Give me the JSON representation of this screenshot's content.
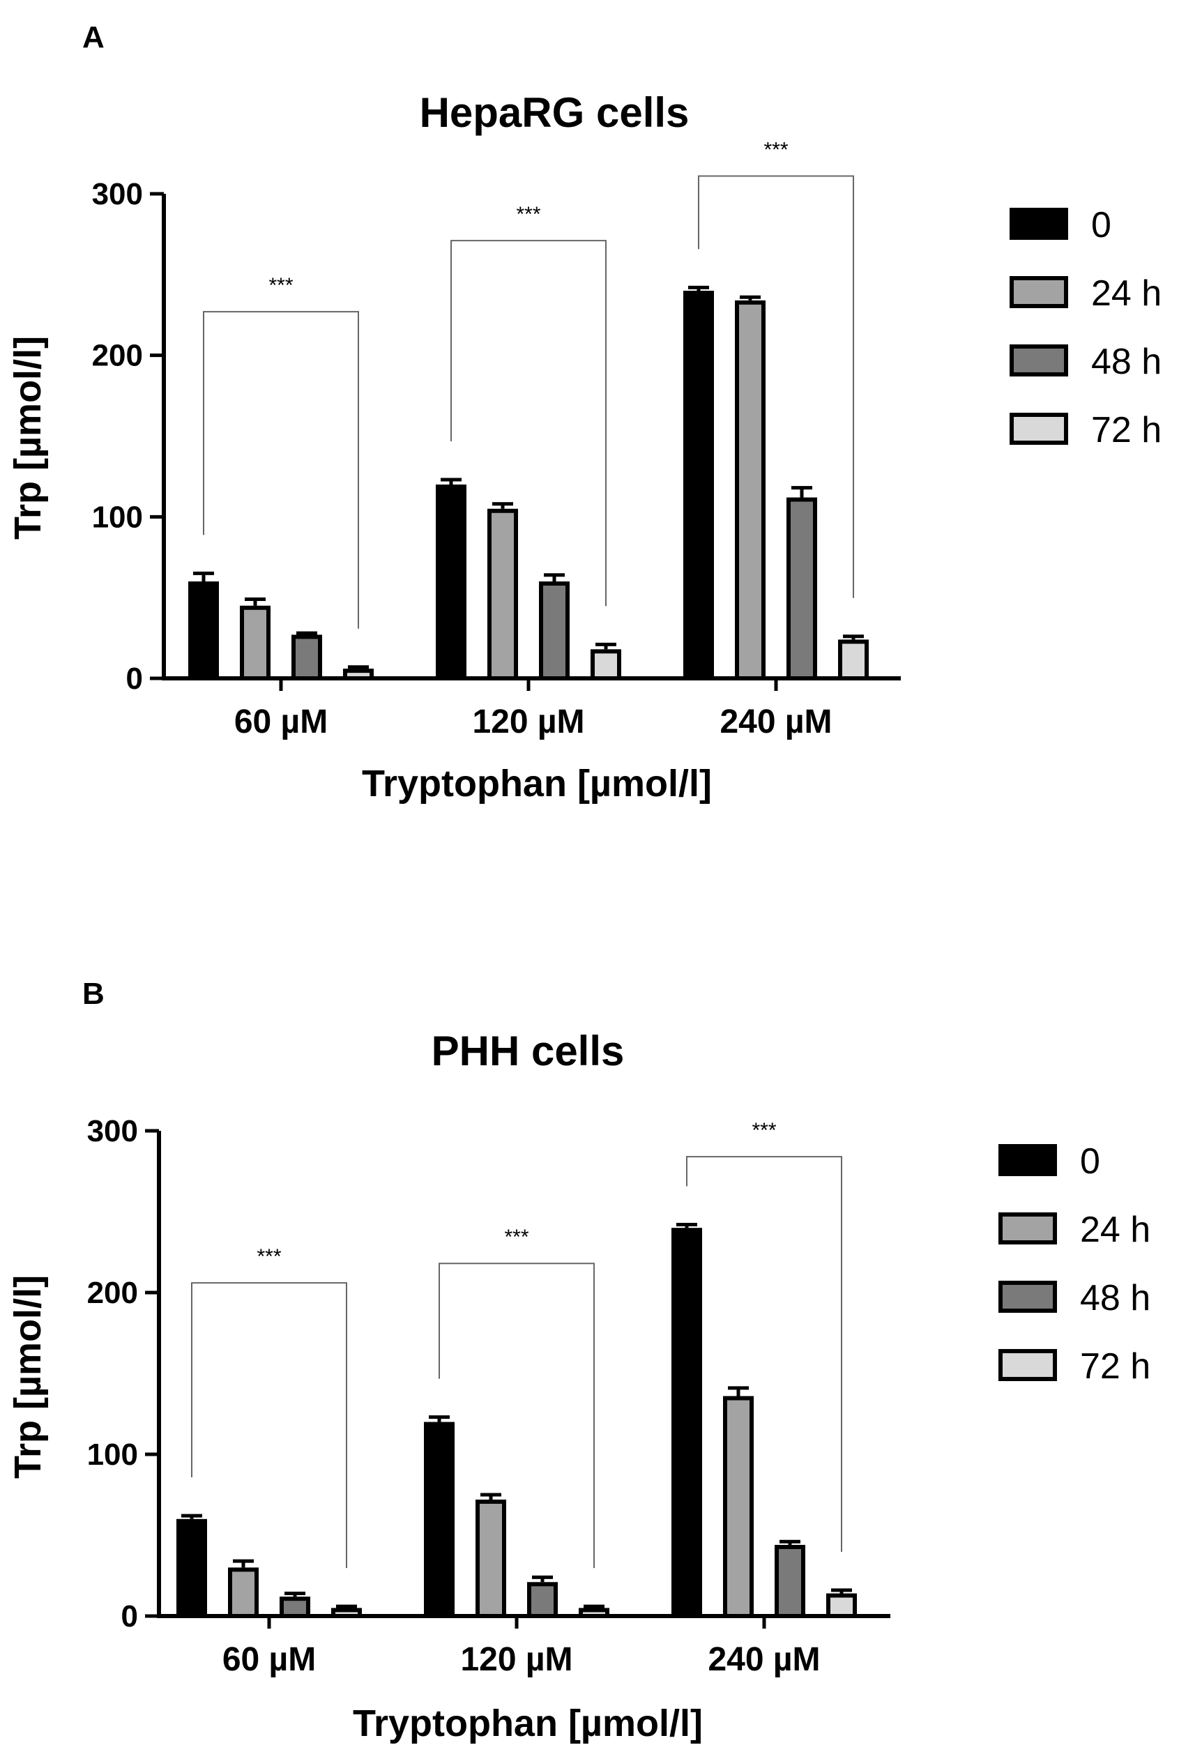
{
  "chart_data": [
    {
      "type": "bar",
      "panel": "A",
      "title": "HepaRG cells",
      "xlabel": "Tryptophan [µmol/l]",
      "ylabel": "Trp [µmol/l]",
      "ylim": [
        0,
        300
      ],
      "yticks": [
        "0",
        "100",
        "200",
        "300"
      ],
      "categories": [
        "60 µM",
        "120 µM",
        "240 µM"
      ],
      "series": [
        {
          "name": "0",
          "color": "#000000",
          "values": [
            60,
            120,
            240
          ],
          "errors": [
            5,
            3,
            2
          ]
        },
        {
          "name": "24 h",
          "color": "#a3a3a3",
          "values": [
            45,
            105,
            234
          ],
          "errors": [
            4,
            3,
            2
          ]
        },
        {
          "name": "48 h",
          "color": "#7a7a7a",
          "values": [
            27,
            60,
            112
          ],
          "errors": [
            1,
            4,
            6
          ]
        },
        {
          "name": "72 h",
          "color": "#d9d9d9",
          "values": [
            6,
            18,
            24
          ],
          "errors": [
            1,
            3,
            2
          ]
        }
      ],
      "annotations": [
        {
          "text": "***",
          "category": "60 µM",
          "y_top": 227
        },
        {
          "text": "***",
          "category": "120 µM",
          "y_top": 271
        },
        {
          "text": "***",
          "category": "240 µM",
          "y_top": 311
        }
      ],
      "legend_position": "right"
    },
    {
      "type": "bar",
      "panel": "B",
      "title": "PHH cells",
      "xlabel": "Tryptophan [µmol/l]",
      "ylabel": "Trp [µmol/l]",
      "ylim": [
        0,
        300
      ],
      "yticks": [
        "0",
        "100",
        "200",
        "300"
      ],
      "categories": [
        "60 µM",
        "120 µM",
        "240 µM"
      ],
      "series": [
        {
          "name": "0",
          "color": "#000000",
          "values": [
            60,
            120,
            240
          ],
          "errors": [
            2,
            3,
            2
          ]
        },
        {
          "name": "24 h",
          "color": "#a3a3a3",
          "values": [
            30,
            72,
            136
          ],
          "errors": [
            4,
            3,
            5
          ]
        },
        {
          "name": "48 h",
          "color": "#7a7a7a",
          "values": [
            12,
            21,
            44
          ],
          "errors": [
            2,
            3,
            2
          ]
        },
        {
          "name": "72 h",
          "color": "#d9d9d9",
          "values": [
            5,
            5,
            14
          ],
          "errors": [
            1,
            1,
            2
          ]
        }
      ],
      "annotations": [
        {
          "text": "***",
          "category": "60 µM",
          "y_top": 206
        },
        {
          "text": "***",
          "category": "120 µM",
          "y_top": 218
        },
        {
          "text": "***",
          "category": "240 µM",
          "y_top": 284
        }
      ],
      "legend_position": "right"
    }
  ]
}
